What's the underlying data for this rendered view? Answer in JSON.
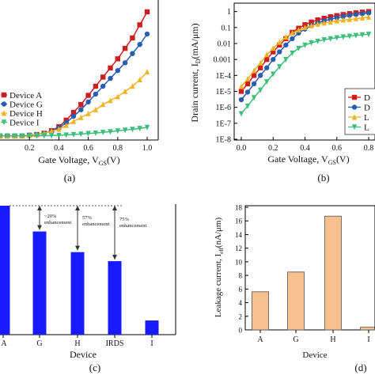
{
  "chart_data": [
    {
      "panel": "(a)",
      "type": "line",
      "xlabel": "Gate Voltage, V",
      "xlabel_sub": "GS",
      "xlabel_tail": "(V)",
      "ylabel": "",
      "x_ticks": [
        "0.2",
        "0.4",
        "0.6",
        "0.8",
        "1.0"
      ],
      "xlim": [
        0,
        1.0
      ],
      "ylim": [
        0,
        1.0
      ],
      "legend": "left",
      "series": [
        {
          "name": "Device A",
          "color": "#cc1f1f",
          "marker": "square",
          "x": [
            0,
            0.05,
            0.1,
            0.15,
            0.2,
            0.25,
            0.3,
            0.35,
            0.4,
            0.45,
            0.5,
            0.55,
            0.6,
            0.65,
            0.7,
            0.75,
            0.8,
            0.85,
            0.9,
            0.95,
            1.0
          ],
          "y": [
            0.02,
            0.02,
            0.02,
            0.02,
            0.025,
            0.03,
            0.04,
            0.06,
            0.09,
            0.14,
            0.2,
            0.26,
            0.33,
            0.4,
            0.47,
            0.54,
            0.61,
            0.69,
            0.77,
            0.87,
            0.97
          ]
        },
        {
          "name": "Device G",
          "color": "#2a5db0",
          "marker": "circle",
          "x": [
            0,
            0.05,
            0.1,
            0.15,
            0.2,
            0.25,
            0.3,
            0.35,
            0.4,
            0.45,
            0.5,
            0.55,
            0.6,
            0.65,
            0.7,
            0.75,
            0.8,
            0.85,
            0.9,
            0.95,
            1.0
          ],
          "y": [
            0.02,
            0.02,
            0.02,
            0.02,
            0.025,
            0.03,
            0.04,
            0.055,
            0.08,
            0.12,
            0.17,
            0.22,
            0.28,
            0.34,
            0.4,
            0.46,
            0.52,
            0.58,
            0.65,
            0.72,
            0.8
          ]
        },
        {
          "name": "Device H",
          "color": "#f0b321",
          "marker": "triangle-up",
          "x": [
            0,
            0.05,
            0.1,
            0.15,
            0.2,
            0.25,
            0.3,
            0.35,
            0.4,
            0.45,
            0.5,
            0.55,
            0.6,
            0.65,
            0.7,
            0.75,
            0.8,
            0.85,
            0.9,
            0.95,
            1.0
          ],
          "y": [
            0.02,
            0.02,
            0.02,
            0.02,
            0.025,
            0.03,
            0.04,
            0.055,
            0.07,
            0.1,
            0.13,
            0.16,
            0.19,
            0.22,
            0.26,
            0.29,
            0.32,
            0.36,
            0.4,
            0.45,
            0.51
          ]
        },
        {
          "name": "Device I",
          "color": "#3cbf7a",
          "marker": "triangle-down",
          "x": [
            0,
            0.05,
            0.1,
            0.15,
            0.2,
            0.25,
            0.3,
            0.35,
            0.4,
            0.45,
            0.5,
            0.55,
            0.6,
            0.65,
            0.7,
            0.75,
            0.8,
            0.85,
            0.9,
            0.95,
            1.0
          ],
          "y": [
            0.02,
            0.02,
            0.02,
            0.02,
            0.02,
            0.02,
            0.021,
            0.022,
            0.024,
            0.027,
            0.03,
            0.034,
            0.038,
            0.042,
            0.047,
            0.052,
            0.058,
            0.064,
            0.07,
            0.077,
            0.085
          ]
        }
      ]
    },
    {
      "panel": "(b)",
      "type": "line",
      "xlabel": "Gate Voltage, V",
      "xlabel_sub": "GS",
      "xlabel_tail": "(V)",
      "ylabel": "Drain current, I",
      "ylabel_sub": "D",
      "ylabel_tail": "(mA/μm)",
      "y_scale": "log",
      "x_ticks": [
        "0.0",
        "0.2",
        "0.4",
        "0.6",
        "0.8"
      ],
      "y_ticks": [
        "1E-8",
        "1E-7",
        "1E-6",
        "1E-5",
        "1E-4",
        "0.001",
        "0.01",
        "0.1",
        "1"
      ],
      "xlim": [
        0,
        0.8
      ],
      "ylim": [
        1e-08,
        3
      ],
      "legend_labels": [
        "D",
        "D",
        "L",
        "L"
      ],
      "series": [
        {
          "name": "Device A",
          "color": "#cc1f1f",
          "marker": "square",
          "x": [
            0,
            0.04,
            0.08,
            0.12,
            0.16,
            0.2,
            0.24,
            0.28,
            0.32,
            0.36,
            0.4,
            0.44,
            0.48,
            0.52,
            0.56,
            0.6,
            0.64,
            0.68,
            0.72,
            0.76,
            0.8
          ],
          "y": [
            1e-05,
            3e-05,
            0.0001,
            0.0003,
            0.001,
            0.003,
            0.008,
            0.02,
            0.05,
            0.09,
            0.15,
            0.22,
            0.3,
            0.38,
            0.47,
            0.56,
            0.65,
            0.74,
            0.83,
            0.92,
            1.0
          ]
        },
        {
          "name": "Device G",
          "color": "#2a5db0",
          "marker": "circle",
          "x": [
            0,
            0.04,
            0.08,
            0.12,
            0.16,
            0.2,
            0.24,
            0.28,
            0.32,
            0.36,
            0.4,
            0.44,
            0.48,
            0.52,
            0.56,
            0.6,
            0.64,
            0.68,
            0.72,
            0.76,
            0.8
          ],
          "y": [
            3e-06,
            9e-06,
            3e-05,
            0.0001,
            0.0003,
            0.001,
            0.003,
            0.008,
            0.02,
            0.045,
            0.08,
            0.13,
            0.19,
            0.26,
            0.33,
            0.41,
            0.49,
            0.57,
            0.65,
            0.73,
            0.81
          ]
        },
        {
          "name": "Device H",
          "color": "#f0b321",
          "marker": "triangle-up",
          "x": [
            0,
            0.04,
            0.08,
            0.12,
            0.16,
            0.2,
            0.24,
            0.28,
            0.32,
            0.36,
            0.4,
            0.44,
            0.48,
            0.52,
            0.56,
            0.6,
            0.64,
            0.68,
            0.72,
            0.76,
            0.8
          ],
          "y": [
            2e-05,
            6e-05,
            0.0002,
            0.0006,
            0.002,
            0.005,
            0.012,
            0.025,
            0.045,
            0.07,
            0.1,
            0.13,
            0.16,
            0.19,
            0.22,
            0.26,
            0.29,
            0.32,
            0.36,
            0.4,
            0.45
          ]
        },
        {
          "name": "Device I",
          "color": "#3cbf7a",
          "marker": "triangle-down",
          "x": [
            0,
            0.04,
            0.08,
            0.12,
            0.16,
            0.2,
            0.24,
            0.28,
            0.32,
            0.36,
            0.4,
            0.44,
            0.48,
            0.52,
            0.56,
            0.6,
            0.64,
            0.68,
            0.72,
            0.76,
            0.8
          ],
          "y": [
            4e-07,
            1.2e-06,
            4e-06,
            1.2e-05,
            4e-05,
            0.00012,
            0.00035,
            0.001,
            0.0025,
            0.005,
            0.008,
            0.011,
            0.014,
            0.017,
            0.02,
            0.023,
            0.026,
            0.029,
            0.032,
            0.035,
            0.038
          ]
        }
      ]
    },
    {
      "panel": "(c)",
      "type": "bar",
      "xlabel": "Device",
      "color": "#1a1aff",
      "categories": [
        "A",
        "G",
        "H",
        "IRDS",
        "I"
      ],
      "values": [
        100,
        80,
        64,
        57,
        11
      ],
      "ylim": [
        0,
        100
      ],
      "annotations": [
        {
          "text": "~20% enhancement",
          "from": "A",
          "to": "G"
        },
        {
          "text": "57% enhancement",
          "from": "A",
          "to": "H"
        },
        {
          "text": "75% enhancement",
          "from": "A",
          "to": "IRDS"
        }
      ]
    },
    {
      "panel": "(d)",
      "type": "bar",
      "xlabel": "Device",
      "ylabel": "Leakage current, I",
      "ylabel_sub": "eff",
      "ylabel_tail": "(nA/μm)",
      "color": "#f6c08f",
      "edge_color": "#555555",
      "categories": [
        "A",
        "G",
        "H",
        "I"
      ],
      "values": [
        5.6,
        8.5,
        16.7,
        0.4
      ],
      "ylim": [
        0,
        18
      ],
      "y_ticks": [
        "0",
        "2",
        "4",
        "6",
        "8",
        "10",
        "12",
        "14",
        "16",
        "18"
      ]
    }
  ]
}
